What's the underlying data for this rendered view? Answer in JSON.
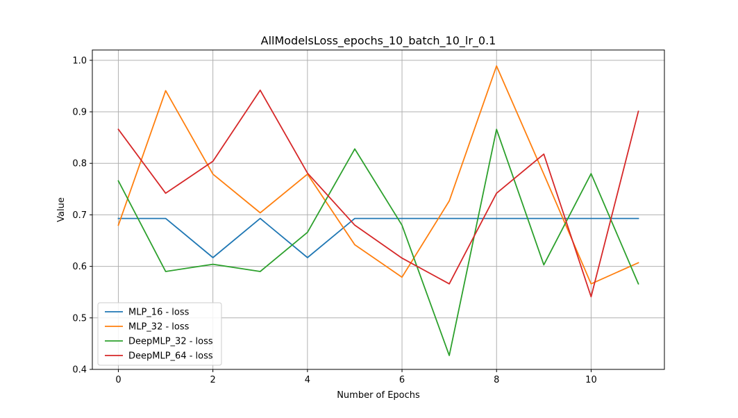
{
  "chart_data": {
    "type": "line",
    "title": "AllModelsLoss_epochs_10_batch_10_lr_0.1",
    "xlabel": "Number of Epochs",
    "ylabel": "Value",
    "xlim": [
      -0.55,
      11.55
    ],
    "ylim": [
      0.4,
      1.02
    ],
    "xticks": [
      0,
      2,
      4,
      6,
      8,
      10
    ],
    "yticks": [
      0.4,
      0.5,
      0.6,
      0.7,
      0.8,
      0.9,
      1.0
    ],
    "xtick_labels": [
      "0",
      "2",
      "4",
      "6",
      "8",
      "10"
    ],
    "ytick_labels": [
      "0.4",
      "0.5",
      "0.6",
      "0.7",
      "0.8",
      "0.9",
      "1.0"
    ],
    "grid": true,
    "legend_position": "lower-left",
    "x": [
      0,
      1,
      2,
      3,
      4,
      5,
      6,
      7,
      8,
      9,
      10,
      11
    ],
    "series": [
      {
        "name": "MLP_16 - loss",
        "color": "#1f77b4",
        "values": [
          0.693,
          0.693,
          0.617,
          0.693,
          0.617,
          0.693,
          0.693,
          0.693,
          0.693,
          0.693,
          0.693,
          0.693
        ]
      },
      {
        "name": "MLP_32 - loss",
        "color": "#ff7f0e",
        "values": [
          0.68,
          0.941,
          0.779,
          0.704,
          0.779,
          0.642,
          0.579,
          0.727,
          0.989,
          0.779,
          0.566,
          0.607
        ]
      },
      {
        "name": "DeepMLP_32 - loss",
        "color": "#2ca02c",
        "values": [
          0.766,
          0.59,
          0.604,
          0.59,
          0.666,
          0.828,
          0.68,
          0.427,
          0.866,
          0.603,
          0.78,
          0.566
        ]
      },
      {
        "name": "DeepMLP_64 - loss",
        "color": "#d62728",
        "values": [
          0.866,
          0.742,
          0.804,
          0.942,
          0.781,
          0.68,
          0.616,
          0.566,
          0.742,
          0.818,
          0.541,
          0.901
        ]
      }
    ]
  }
}
